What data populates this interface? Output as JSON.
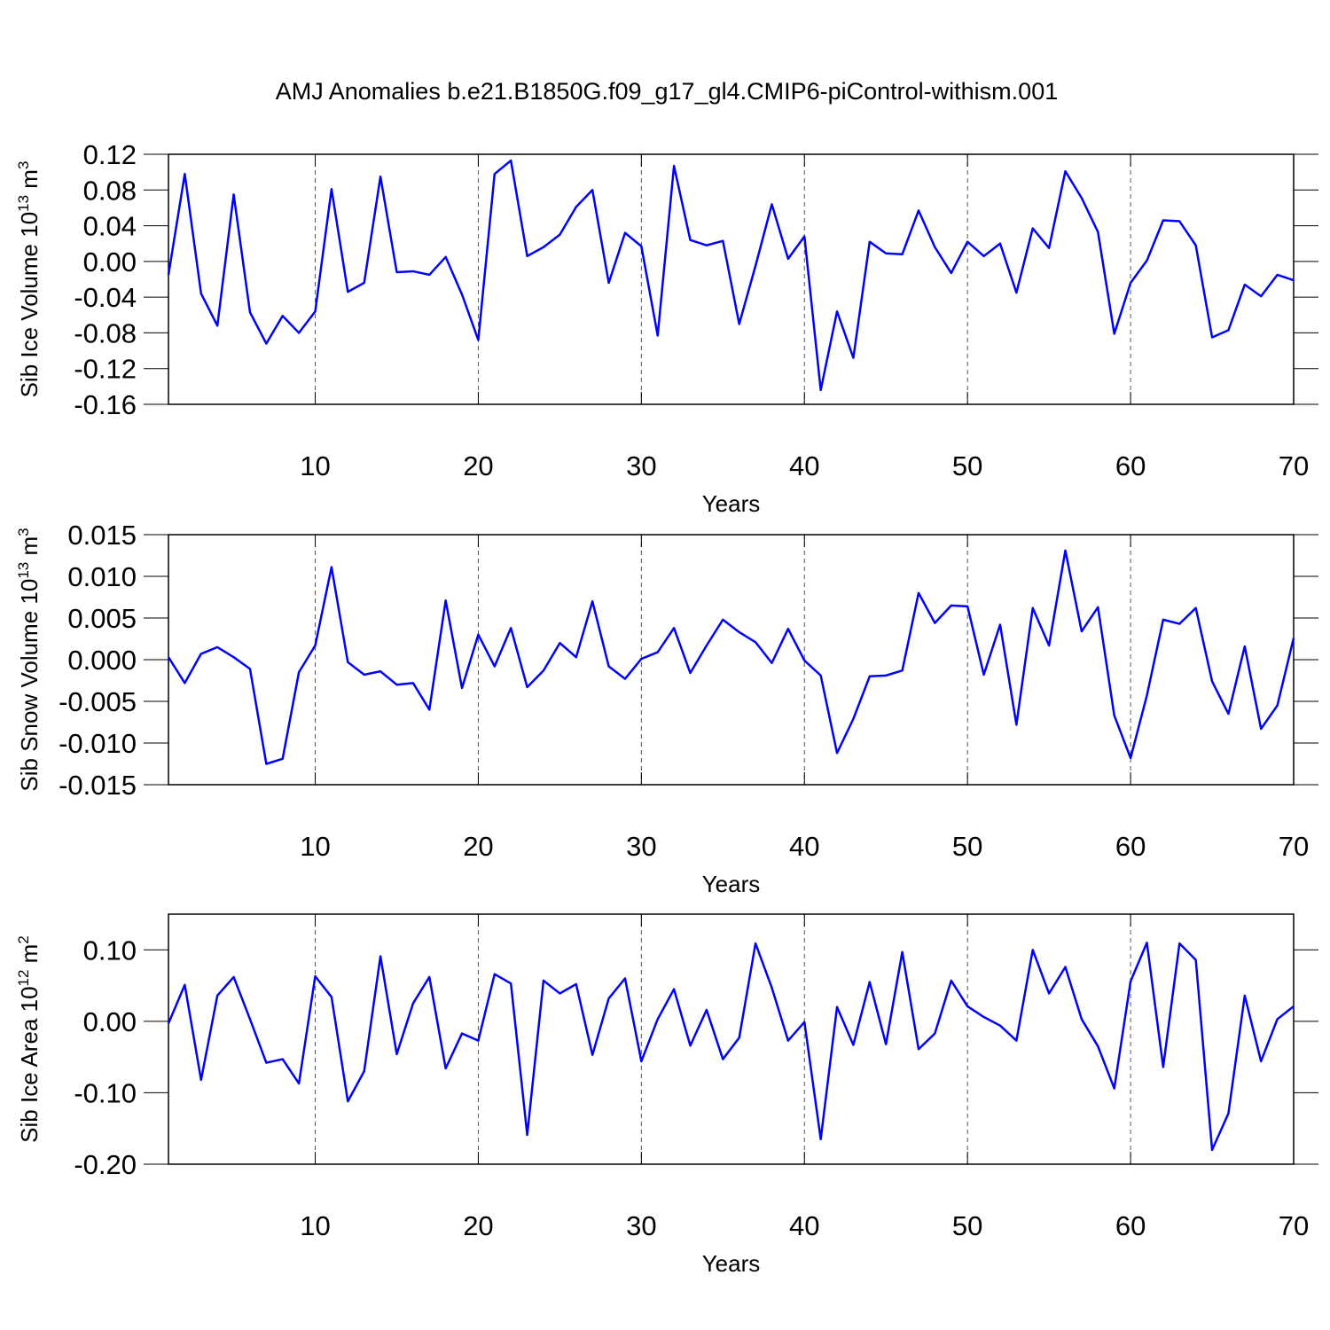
{
  "title": "AMJ Anomalies b.e21.B1850G.f09_g17_gl4.CMIP6-piControl-withism.001",
  "chart_data": [
    {
      "type": "line",
      "xlabel": "Years",
      "ylabel": {
        "text": "Sib Ice Volume 10",
        "exp": "13",
        "unit": " m",
        "unit_exp": "3"
      },
      "color": "#0000ff",
      "grid": "x",
      "xlim": [
        1,
        70
      ],
      "xticks": [
        10,
        20,
        30,
        40,
        50,
        60,
        70
      ],
      "ylim": [
        -0.16,
        0.12
      ],
      "yticks": [
        0.12,
        0.08,
        0.04,
        {
          "value": 0,
          "label": "0.00"
        },
        -0.04,
        -0.08,
        -0.12,
        -0.16
      ],
      "x": [
        1,
        2,
        3,
        4,
        5,
        6,
        7,
        8,
        9,
        10,
        11,
        12,
        13,
        14,
        15,
        16,
        17,
        18,
        19,
        20,
        21,
        22,
        23,
        24,
        25,
        26,
        27,
        28,
        29,
        30,
        31,
        32,
        33,
        34,
        35,
        36,
        37,
        38,
        39,
        40,
        41,
        42,
        43,
        44,
        45,
        46,
        47,
        48,
        49,
        50,
        51,
        52,
        53,
        54,
        55,
        56,
        57,
        58,
        59,
        60,
        61,
        62,
        63,
        64,
        65,
        66,
        67,
        68,
        69,
        70
      ],
      "values": [
        -0.015,
        0.098,
        -0.036,
        -0.072,
        0.075,
        -0.057,
        -0.092,
        -0.061,
        -0.08,
        -0.056,
        0.081,
        -0.034,
        -0.024,
        0.095,
        -0.012,
        -0.011,
        -0.015,
        0.005,
        -0.037,
        -0.088,
        0.098,
        0.113,
        0.006,
        0.016,
        0.03,
        0.061,
        0.08,
        -0.024,
        0.032,
        0.017,
        -0.083,
        0.107,
        0.024,
        0.018,
        0.023,
        -0.07,
        -0.005,
        0.064,
        0.003,
        0.028,
        -0.144,
        -0.056,
        -0.108,
        0.022,
        0.009,
        0.008,
        0.057,
        0.016,
        -0.013,
        0.022,
        0.006,
        0.02,
        -0.035,
        0.037,
        0.015,
        0.101,
        0.071,
        0.033,
        -0.081,
        -0.024,
        0.001,
        0.046,
        0.045,
        0.018,
        -0.085,
        -0.077,
        -0.026,
        -0.039,
        -0.015,
        -0.021
      ]
    },
    {
      "type": "line",
      "xlabel": "Years",
      "ylabel": {
        "text": "Sib Snow Volume 10",
        "exp": "13",
        "unit": " m",
        "unit_exp": "3"
      },
      "color": "#0000ff",
      "grid": "x",
      "xlim": [
        1,
        70
      ],
      "xticks": [
        10,
        20,
        30,
        40,
        50,
        60,
        70
      ],
      "ylim": [
        -0.015,
        0.015
      ],
      "yticks": [
        0.015,
        {
          "value": 0.01,
          "label": "0.010"
        },
        0.005,
        {
          "value": 0,
          "label": "0.000"
        },
        -0.005,
        {
          "value": -0.01,
          "label": "-0.010"
        },
        -0.015
      ],
      "x": [
        1,
        2,
        3,
        4,
        5,
        6,
        7,
        8,
        9,
        10,
        11,
        12,
        13,
        14,
        15,
        16,
        17,
        18,
        19,
        20,
        21,
        22,
        23,
        24,
        25,
        26,
        27,
        28,
        29,
        30,
        31,
        32,
        33,
        34,
        35,
        36,
        37,
        38,
        39,
        40,
        41,
        42,
        43,
        44,
        45,
        46,
        47,
        48,
        49,
        50,
        51,
        52,
        53,
        54,
        55,
        56,
        57,
        58,
        59,
        60,
        61,
        62,
        63,
        64,
        65,
        66,
        67,
        68,
        69,
        70
      ],
      "values": [
        0.0003,
        -0.0028,
        0.0007,
        0.0015,
        0.0003,
        -0.0011,
        -0.0125,
        -0.0119,
        -0.0015,
        0.0017,
        0.0111,
        -0.0003,
        -0.0018,
        -0.0014,
        -0.003,
        -0.0028,
        -0.006,
        0.0071,
        -0.0034,
        0.003,
        -0.0008,
        0.0038,
        -0.0033,
        -0.0013,
        0.002,
        0.0003,
        0.007,
        -0.0008,
        -0.0023,
        0.0001,
        0.0009,
        0.0038,
        -0.0016,
        0.0017,
        0.0048,
        0.0033,
        0.0021,
        -0.0004,
        0.0037,
        -0.0001,
        -0.0019,
        -0.0112,
        -0.0071,
        -0.002,
        -0.0019,
        -0.0013,
        0.008,
        0.0044,
        0.0065,
        0.0064,
        -0.0018,
        0.0042,
        -0.0078,
        0.0062,
        0.0017,
        0.0131,
        0.0034,
        0.0063,
        -0.0067,
        -0.0118,
        -0.0043,
        0.0048,
        0.0043,
        0.0062,
        -0.0026,
        -0.0065,
        0.0016,
        -0.0083,
        -0.0055,
        0.0026
      ]
    },
    {
      "type": "line",
      "xlabel": "Years",
      "ylabel": {
        "text": "Sib Ice Area 10",
        "exp": "12",
        "unit": " m",
        "unit_exp": "2"
      },
      "color": "#0000ff",
      "grid": "x",
      "xlim": [
        1,
        70
      ],
      "xticks": [
        10,
        20,
        30,
        40,
        50,
        60,
        70
      ],
      "ylim": [
        -0.2,
        0.15
      ],
      "yticks": [
        {
          "value": 0.1,
          "label": "0.10"
        },
        {
          "value": 0,
          "label": "0.00"
        },
        {
          "value": -0.1,
          "label": "-0.10"
        },
        {
          "value": -0.2,
          "label": "-0.20"
        }
      ],
      "x": [
        1,
        2,
        3,
        4,
        5,
        6,
        7,
        8,
        9,
        10,
        11,
        12,
        13,
        14,
        15,
        16,
        17,
        18,
        19,
        20,
        21,
        22,
        23,
        24,
        25,
        26,
        27,
        28,
        29,
        30,
        31,
        32,
        33,
        34,
        35,
        36,
        37,
        38,
        39,
        40,
        41,
        42,
        43,
        44,
        45,
        46,
        47,
        48,
        49,
        50,
        51,
        52,
        53,
        54,
        55,
        56,
        57,
        58,
        59,
        60,
        61,
        62,
        63,
        64,
        65,
        66,
        67,
        68,
        69,
        70
      ],
      "values": [
        -0.003,
        0.051,
        -0.082,
        0.036,
        0.062,
        0.003,
        -0.058,
        -0.053,
        -0.087,
        0.063,
        0.034,
        -0.112,
        -0.07,
        0.091,
        -0.046,
        0.025,
        0.062,
        -0.066,
        -0.017,
        -0.027,
        0.066,
        0.053,
        -0.159,
        0.057,
        0.039,
        0.052,
        -0.047,
        0.032,
        0.06,
        -0.056,
        0.003,
        0.045,
        -0.034,
        0.016,
        -0.053,
        -0.023,
        0.109,
        0.047,
        -0.027,
        -0.001,
        -0.165,
        0.02,
        -0.033,
        0.055,
        -0.032,
        0.097,
        -0.039,
        -0.017,
        0.057,
        0.021,
        0.006,
        -0.006,
        -0.027,
        0.1,
        0.039,
        0.076,
        0.003,
        -0.035,
        -0.094,
        0.056,
        0.11,
        -0.064,
        0.109,
        0.086,
        -0.18,
        -0.129,
        0.036,
        -0.056,
        0.003,
        0.021
      ]
    }
  ]
}
